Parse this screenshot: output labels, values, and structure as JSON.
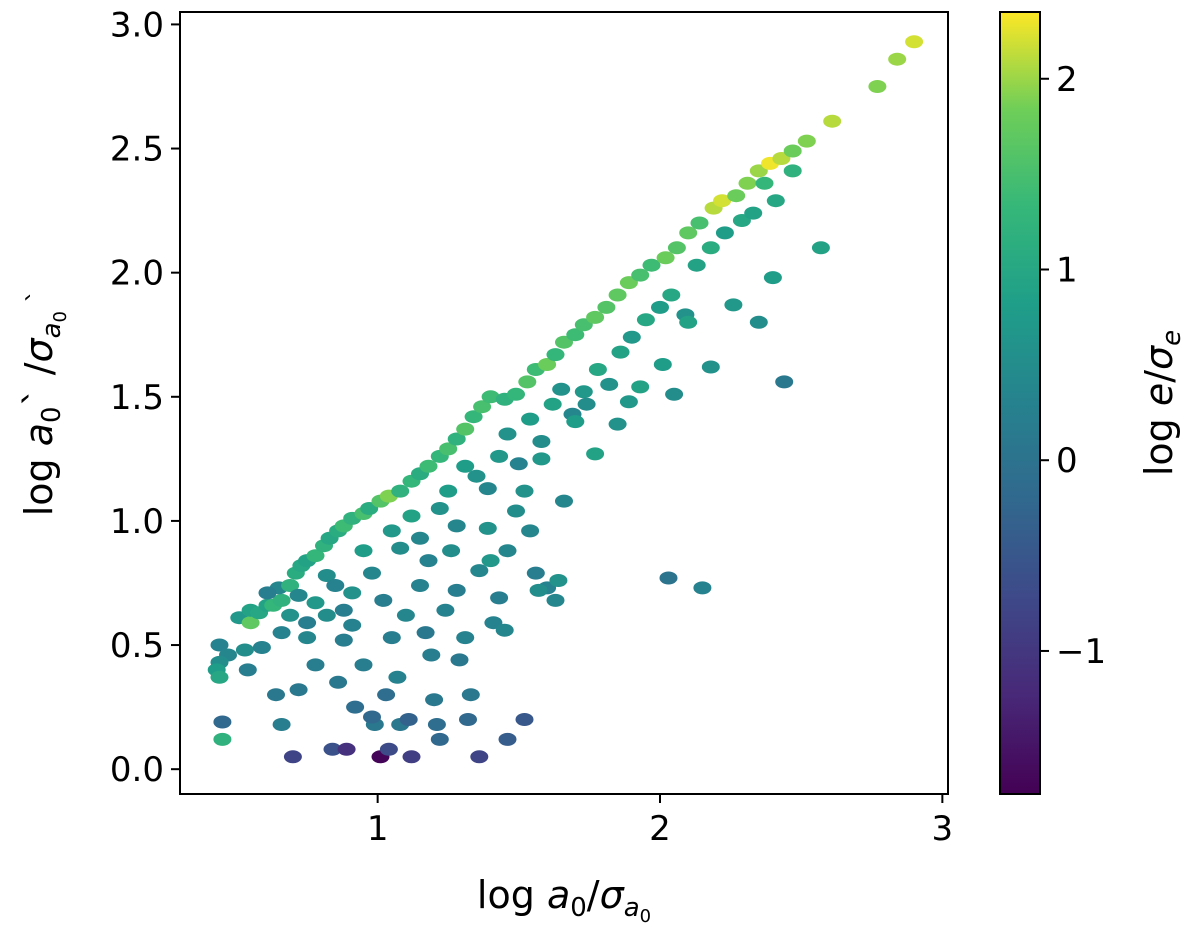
{
  "chart_data": {
    "type": "heatmap",
    "plot_style": "hexbin",
    "title": "",
    "xlabel": "log a0/σa0",
    "ylabel": "log a0` /σa0`",
    "xlim": [
      0.3,
      3.02
    ],
    "ylim": [
      -0.1,
      3.05
    ],
    "x_ticks": [
      1,
      2,
      3
    ],
    "x_tick_labels": [
      "1",
      "2",
      "3"
    ],
    "y_ticks": [
      0.0,
      0.5,
      1.0,
      1.5,
      2.0,
      2.5,
      3.0
    ],
    "y_tick_labels": [
      "0.0",
      "0.5",
      "1.0",
      "1.5",
      "2.0",
      "2.5",
      "3.0"
    ],
    "grid": false,
    "colorbar": {
      "label": "log e/σe",
      "colormap": "viridis",
      "range": [
        -1.75,
        2.35
      ],
      "ticks": [
        -1,
        0,
        1,
        2
      ],
      "tick_labels": [
        "−1",
        "0",
        "1",
        "2"
      ]
    },
    "points_columns": [
      "x",
      "y",
      "color_value"
    ],
    "points": [
      [
        0.44,
        0.5,
        0.3
      ],
      [
        0.47,
        0.46,
        0.4
      ],
      [
        0.44,
        0.43,
        0.5
      ],
      [
        0.53,
        0.48,
        0.5
      ],
      [
        0.43,
        0.4,
        0.8
      ],
      [
        0.44,
        0.37,
        1.0
      ],
      [
        0.45,
        0.19,
        -0.2
      ],
      [
        0.45,
        0.12,
        1.2
      ],
      [
        0.51,
        0.61,
        0.7
      ],
      [
        0.55,
        0.59,
        1.7
      ],
      [
        0.55,
        0.64,
        0.9
      ],
      [
        0.58,
        0.63,
        1.0
      ],
      [
        0.61,
        0.66,
        0.9
      ],
      [
        0.63,
        0.66,
        1.3
      ],
      [
        0.66,
        0.68,
        1.2
      ],
      [
        0.65,
        0.73,
        0.4
      ],
      [
        0.69,
        0.74,
        1.2
      ],
      [
        0.71,
        0.79,
        1.1
      ],
      [
        0.73,
        0.82,
        1.0
      ],
      [
        0.75,
        0.84,
        0.9
      ],
      [
        0.78,
        0.86,
        1.3
      ],
      [
        0.81,
        0.9,
        1.2
      ],
      [
        0.83,
        0.93,
        1.0
      ],
      [
        0.86,
        0.96,
        1.1
      ],
      [
        0.88,
        0.98,
        1.4
      ],
      [
        0.91,
        1.01,
        1.2
      ],
      [
        0.95,
        1.03,
        1.5
      ],
      [
        0.97,
        1.05,
        1.1
      ],
      [
        1.01,
        1.08,
        1.6
      ],
      [
        1.04,
        1.1,
        1.9
      ],
      [
        1.08,
        1.12,
        1.2
      ],
      [
        1.12,
        1.16,
        1.3
      ],
      [
        1.15,
        1.19,
        1.1
      ],
      [
        1.18,
        1.22,
        1.4
      ],
      [
        1.22,
        1.26,
        1.3
      ],
      [
        1.25,
        1.29,
        1.5
      ],
      [
        1.28,
        1.33,
        1.2
      ],
      [
        1.31,
        1.37,
        1.6
      ],
      [
        1.34,
        1.42,
        1.3
      ],
      [
        1.37,
        1.46,
        1.5
      ],
      [
        1.4,
        1.5,
        1.4
      ],
      [
        1.45,
        1.49,
        1.2
      ],
      [
        1.49,
        1.51,
        1.3
      ],
      [
        1.53,
        1.56,
        1.6
      ],
      [
        1.56,
        1.61,
        1.4
      ],
      [
        1.6,
        1.63,
        1.8
      ],
      [
        1.63,
        1.67,
        1.3
      ],
      [
        1.66,
        1.72,
        1.6
      ],
      [
        1.7,
        1.75,
        1.4
      ],
      [
        1.73,
        1.79,
        1.5
      ],
      [
        1.77,
        1.82,
        1.7
      ],
      [
        1.81,
        1.86,
        1.6
      ],
      [
        1.85,
        1.91,
        1.7
      ],
      [
        1.89,
        1.96,
        1.8
      ],
      [
        1.93,
        1.99,
        1.5
      ],
      [
        1.97,
        2.03,
        1.4
      ],
      [
        2.02,
        2.06,
        1.8
      ],
      [
        2.06,
        2.1,
        1.6
      ],
      [
        2.1,
        2.16,
        1.7
      ],
      [
        2.14,
        2.2,
        1.5
      ],
      [
        2.19,
        2.26,
        2.1
      ],
      [
        2.22,
        2.29,
        2.2
      ],
      [
        2.27,
        2.31,
        1.8
      ],
      [
        2.31,
        2.36,
        1.9
      ],
      [
        2.35,
        2.41,
        2.0
      ],
      [
        2.39,
        2.44,
        2.3
      ],
      [
        2.43,
        2.46,
        2.1
      ],
      [
        2.47,
        2.49,
        1.8
      ],
      [
        2.52,
        2.53,
        1.9
      ],
      [
        2.61,
        2.61,
        2.1
      ],
      [
        2.77,
        2.75,
        1.9
      ],
      [
        2.84,
        2.86,
        2.0
      ],
      [
        2.9,
        2.93,
        2.2
      ],
      [
        0.61,
        0.71,
        0.2
      ],
      [
        0.66,
        0.55,
        0.3
      ],
      [
        0.69,
        0.62,
        0.6
      ],
      [
        0.72,
        0.7,
        0.4
      ],
      [
        0.75,
        0.59,
        0.2
      ],
      [
        0.78,
        0.67,
        0.7
      ],
      [
        0.82,
        0.78,
        0.5
      ],
      [
        0.85,
        0.74,
        0.3
      ],
      [
        0.88,
        0.64,
        0.2
      ],
      [
        0.91,
        0.71,
        0.6
      ],
      [
        0.95,
        0.88,
        0.8
      ],
      [
        0.98,
        0.79,
        0.4
      ],
      [
        1.02,
        0.68,
        0.2
      ],
      [
        1.05,
        0.96,
        0.7
      ],
      [
        1.08,
        0.89,
        0.5
      ],
      [
        1.12,
        1.02,
        0.9
      ],
      [
        1.15,
        0.93,
        0.4
      ],
      [
        1.18,
        0.84,
        0.3
      ],
      [
        1.22,
        1.05,
        0.6
      ],
      [
        1.25,
        1.12,
        0.8
      ],
      [
        1.28,
        0.98,
        0.4
      ],
      [
        1.31,
        1.22,
        0.8
      ],
      [
        1.35,
        1.18,
        0.6
      ],
      [
        1.39,
        1.13,
        0.4
      ],
      [
        1.43,
        1.26,
        0.7
      ],
      [
        1.46,
        1.35,
        0.6
      ],
      [
        1.5,
        1.23,
        0.3
      ],
      [
        1.54,
        1.41,
        0.8
      ],
      [
        1.58,
        1.32,
        0.5
      ],
      [
        1.62,
        1.47,
        0.9
      ],
      [
        1.65,
        1.53,
        0.6
      ],
      [
        1.69,
        1.43,
        0.4
      ],
      [
        1.73,
        1.52,
        0.7
      ],
      [
        1.78,
        1.61,
        1.0
      ],
      [
        1.82,
        1.55,
        0.6
      ],
      [
        1.86,
        1.68,
        0.9
      ],
      [
        1.9,
        1.74,
        0.7
      ],
      [
        1.95,
        1.81,
        1.0
      ],
      [
        2.0,
        1.86,
        0.8
      ],
      [
        2.04,
        1.91,
        1.0
      ],
      [
        2.09,
        1.83,
        0.6
      ],
      [
        2.13,
        2.03,
        0.9
      ],
      [
        2.18,
        2.1,
        1.1
      ],
      [
        2.23,
        2.16,
        0.8
      ],
      [
        2.29,
        2.21,
        1.0
      ],
      [
        2.33,
        2.24,
        0.9
      ],
      [
        2.37,
        2.36,
        1.3
      ],
      [
        2.41,
        2.29,
        1.0
      ],
      [
        2.47,
        2.41,
        1.2
      ],
      [
        0.54,
        0.4,
        0.2
      ],
      [
        0.59,
        0.49,
        0.3
      ],
      [
        0.64,
        0.3,
        0.1
      ],
      [
        0.66,
        0.18,
        0.2
      ],
      [
        0.72,
        0.32,
        0.1
      ],
      [
        0.75,
        0.53,
        0.4
      ],
      [
        0.78,
        0.42,
        0.2
      ],
      [
        0.82,
        0.62,
        0.5
      ],
      [
        0.86,
        0.35,
        0.1
      ],
      [
        0.88,
        0.52,
        0.2
      ],
      [
        0.91,
        0.58,
        0.3
      ],
      [
        0.92,
        0.25,
        -0.1
      ],
      [
        0.95,
        0.42,
        0.2
      ],
      [
        0.99,
        0.18,
        0.1
      ],
      [
        1.03,
        0.3,
        -0.1
      ],
      [
        1.05,
        0.53,
        0.2
      ],
      [
        1.07,
        0.37,
        0.3
      ],
      [
        1.08,
        0.18,
        0.1
      ],
      [
        1.1,
        0.62,
        0.4
      ],
      [
        1.15,
        0.74,
        0.3
      ],
      [
        1.17,
        0.55,
        0.1
      ],
      [
        1.19,
        0.46,
        0.2
      ],
      [
        1.2,
        0.28,
        0.1
      ],
      [
        1.22,
        0.12,
        -0.2
      ],
      [
        1.24,
        0.64,
        0.3
      ],
      [
        1.26,
        0.88,
        0.5
      ],
      [
        1.28,
        0.72,
        0.2
      ],
      [
        1.29,
        0.44,
        0.1
      ],
      [
        1.31,
        0.53,
        0.3
      ],
      [
        1.33,
        0.3,
        0.1
      ],
      [
        1.36,
        0.8,
        0.4
      ],
      [
        1.39,
        0.97,
        0.6
      ],
      [
        1.41,
        0.59,
        0.3
      ],
      [
        1.43,
        0.69,
        0.2
      ],
      [
        1.46,
        0.88,
        0.4
      ],
      [
        1.49,
        1.04,
        0.5
      ],
      [
        1.52,
        1.12,
        0.6
      ],
      [
        1.54,
        0.96,
        0.4
      ],
      [
        1.56,
        0.79,
        0.2
      ],
      [
        1.58,
        1.25,
        0.7
      ],
      [
        1.6,
        0.73,
        0.3
      ],
      [
        1.63,
        0.68,
        0.4
      ],
      [
        1.66,
        1.08,
        0.4
      ],
      [
        1.7,
        1.4,
        0.8
      ],
      [
        1.74,
        1.47,
        0.5
      ],
      [
        1.77,
        1.27,
        0.9
      ],
      [
        1.85,
        1.39,
        0.6
      ],
      [
        1.89,
        1.48,
        0.7
      ],
      [
        1.93,
        1.54,
        0.9
      ],
      [
        2.01,
        1.63,
        0.8
      ],
      [
        2.05,
        1.51,
        0.5
      ],
      [
        2.1,
        1.8,
        0.9
      ],
      [
        2.18,
        1.62,
        0.6
      ],
      [
        2.26,
        1.87,
        0.7
      ],
      [
        2.35,
        1.8,
        0.5
      ],
      [
        2.4,
        1.98,
        0.8
      ],
      [
        2.57,
        2.1,
        0.9
      ],
      [
        2.44,
        1.56,
        0.1
      ],
      [
        2.03,
        0.77,
        0.0
      ],
      [
        2.15,
        0.73,
        0.3
      ],
      [
        1.64,
        0.76,
        0.6
      ],
      [
        1.57,
        0.72,
        0.5
      ],
      [
        1.45,
        0.56,
        0.4
      ],
      [
        1.4,
        0.84,
        0.7
      ],
      [
        0.7,
        0.05,
        -0.8
      ],
      [
        0.84,
        0.08,
        -0.6
      ],
      [
        0.89,
        0.08,
        -1.1
      ],
      [
        1.01,
        0.05,
        -1.7
      ],
      [
        1.04,
        0.08,
        -0.7
      ],
      [
        1.12,
        0.05,
        -0.9
      ],
      [
        1.36,
        0.05,
        -0.8
      ],
      [
        1.46,
        0.12,
        -0.4
      ],
      [
        1.52,
        0.2,
        -0.5
      ],
      [
        1.32,
        0.2,
        -0.2
      ],
      [
        1.21,
        0.18,
        -0.1
      ],
      [
        1.11,
        0.2,
        -0.3
      ],
      [
        0.98,
        0.21,
        -0.2
      ]
    ]
  }
}
